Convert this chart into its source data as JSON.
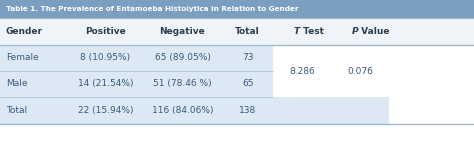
{
  "title": "Table 1. The Prevalence of Entamoeba Histolytica in Relation to Gender",
  "columns": [
    "Gender",
    "Positive",
    "Negative",
    "Total",
    "T Test",
    "P Value"
  ],
  "rows": [
    [
      "Female",
      "8 (10.95%)",
      "65 (89.05%)",
      "73",
      "",
      ""
    ],
    [
      "Male",
      "14 (21.54%)",
      "51 (78.46 %)",
      "65",
      "8.286",
      "0.076"
    ],
    [
      "Total",
      "22 (15.94%)",
      "116 (84.06%)",
      "138",
      "",
      ""
    ]
  ],
  "header_bg": "#f0f4f8",
  "row_bg_light": "#dce9f5",
  "row_bg_white": "#ffffff",
  "text_color": "#3a5a7a",
  "header_text_color": "#2c3e50",
  "title_bg": "#7a9fc0",
  "title_text_color": "#ffffff",
  "line_color": "#a0b8d0",
  "figsize": [
    4.74,
    1.41
  ],
  "dpi": 100
}
